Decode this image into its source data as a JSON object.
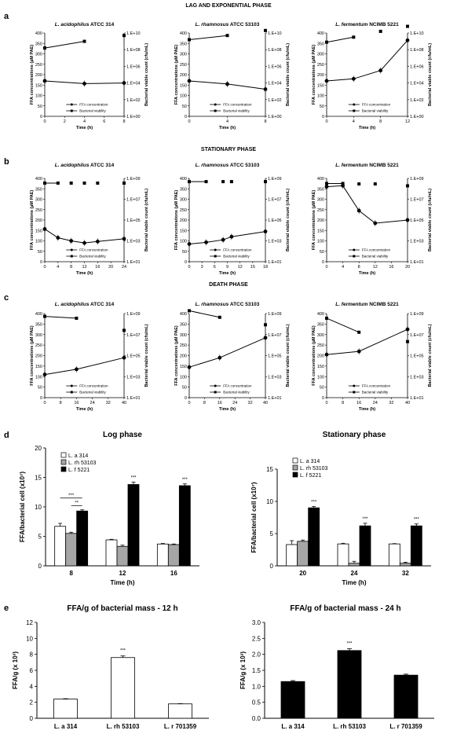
{
  "headers": {
    "lag": "LAG AND EXPONENTIAL PHASE",
    "stationary": "STATIONARY PHASE",
    "death": "DEATH PHASE"
  },
  "panel_letters": {
    "a": "a",
    "b": "b",
    "c": "c",
    "d": "d",
    "e": "e"
  },
  "strain_titles": [
    {
      "species": "L. acidophilus",
      "strain": " ATCC 314"
    },
    {
      "species": "L. rhamnosus",
      "strain": " ATCC 53103"
    },
    {
      "species": "L. fermentum",
      "strain": " NCIMB 5221"
    }
  ],
  "labels": {
    "ffa_axis": "FFA concentrations (µM PAE)",
    "via_axis": "Bacterial viable count (cfu/mL)",
    "time_axis": "Time (h)",
    "legend_ffa": "FFA concentration",
    "legend_via": "Bacterial viability",
    "d_yaxis": "FFA/bacterial cell (x10⁷)",
    "d_xaxis": "Time (h)",
    "e_yaxis_left": "FFA/g (x 10³)",
    "e_yaxis_right": "FFA/g (x 10³)"
  },
  "colors": {
    "white_bar": "#ffffff",
    "grey_bar": "#a6a6a6",
    "black_bar": "#000000",
    "line": "#000000"
  },
  "chart_data": [
    {
      "id": "a1",
      "type": "line",
      "row": "a",
      "col": 0,
      "xlim": [
        0,
        8
      ],
      "xticks": [
        0,
        2,
        4,
        6,
        8
      ],
      "ylim": [
        0,
        400
      ],
      "yticks": [
        0,
        50,
        100,
        150,
        200,
        250,
        300,
        350,
        400
      ],
      "y2ticks": [
        "1.E+00",
        "1.E+02",
        "1.E+04",
        "1.E+06",
        "1.E+08",
        "1.E+10"
      ],
      "y2exp": [
        0,
        10
      ],
      "series": [
        {
          "name": "FFA concentration",
          "x": [
            0,
            4,
            8
          ],
          "y": [
            170,
            157,
            160
          ]
        },
        {
          "name": "Bacterial viability",
          "x": [
            0,
            4,
            8
          ],
          "yexp": [
            8.2,
            9.0,
            9.7
          ]
        }
      ]
    },
    {
      "id": "a2",
      "type": "line",
      "row": "a",
      "col": 1,
      "xlim": [
        0,
        8
      ],
      "xticks": [
        0,
        4,
        8
      ],
      "ylim": [
        0,
        400
      ],
      "yticks": [
        0,
        50,
        100,
        150,
        200,
        250,
        300,
        350,
        400
      ],
      "y2ticks": [
        "1.E+00",
        "1.E+02",
        "1.E+04",
        "1.E+06",
        "1.E+08",
        "1.E+10"
      ],
      "y2exp": [
        0,
        10
      ],
      "series": [
        {
          "name": "FFA concentration",
          "x": [
            0,
            4,
            8
          ],
          "y": [
            170,
            155,
            130
          ]
        },
        {
          "name": "Bacterial viability",
          "x": [
            0,
            4,
            8
          ],
          "yexp": [
            9.2,
            9.7,
            10.3
          ]
        }
      ]
    },
    {
      "id": "a3",
      "type": "line",
      "row": "a",
      "col": 2,
      "xlim": [
        0,
        12
      ],
      "xticks": [
        0,
        4,
        8,
        12
      ],
      "ylim": [
        0,
        400
      ],
      "yticks": [
        0,
        50,
        100,
        150,
        200,
        250,
        300,
        350,
        400
      ],
      "y2ticks": [
        "1.E+00",
        "1.E+02",
        "1.E+04",
        "1.E+06",
        "1.E+08",
        "1.E+10"
      ],
      "y2exp": [
        0,
        10
      ],
      "series": [
        {
          "name": "FFA concentration",
          "x": [
            0,
            4,
            8,
            12
          ],
          "y": [
            170,
            180,
            220,
            365
          ]
        },
        {
          "name": "Bacterial viability",
          "x": [
            0,
            4,
            8,
            12
          ],
          "yexp": [
            8.9,
            9.5,
            10.2,
            10.8
          ]
        }
      ]
    },
    {
      "id": "b1",
      "type": "line",
      "row": "b",
      "col": 0,
      "xlim": [
        0,
        24
      ],
      "xticks": [
        0,
        4,
        8,
        12,
        16,
        20,
        24
      ],
      "ylim": [
        0,
        400
      ],
      "yticks": [
        0,
        50,
        100,
        150,
        200,
        250,
        300,
        350,
        400
      ],
      "y2ticks": [
        "1.E+01",
        "1.E+03",
        "1.E+05",
        "1.E+07",
        "1.E+09"
      ],
      "y2exp": [
        1,
        9.85
      ],
      "series": [
        {
          "name": "FFA concentration",
          "x": [
            0,
            4,
            8,
            12,
            16,
            24
          ],
          "y": [
            157,
            115,
            100,
            90,
            97,
            110
          ]
        },
        {
          "name": "Bacterial viability",
          "x": [
            0,
            4,
            8,
            12,
            16,
            24
          ],
          "yexp": [
            9.35,
            9.35,
            9.35,
            9.35,
            9.35,
            9.35
          ]
        }
      ]
    },
    {
      "id": "b2",
      "type": "line",
      "row": "b",
      "col": 1,
      "xlim": [
        0,
        18
      ],
      "xticks": [
        0,
        3,
        6,
        9,
        12,
        15,
        18
      ],
      "ylim": [
        0,
        400
      ],
      "yticks": [
        0,
        50,
        100,
        150,
        200,
        250,
        300,
        350,
        400
      ],
      "y2ticks": [
        "1.E+01",
        "1.E+03",
        "1.E+05",
        "1.E+07",
        "1.E+09"
      ],
      "y2exp": [
        1,
        10
      ],
      "series": [
        {
          "name": "FFA concentration",
          "x": [
            0,
            4,
            8,
            10,
            18
          ],
          "y": [
            85,
            93,
            105,
            120,
            145
          ]
        },
        {
          "name": "Bacterial viability",
          "x": [
            0,
            4,
            8,
            10,
            18
          ],
          "yexp": [
            9.65,
            9.65,
            9.65,
            9.65,
            9.65
          ]
        }
      ]
    },
    {
      "id": "b3",
      "type": "line",
      "row": "b",
      "col": 2,
      "xlim": [
        0,
        20
      ],
      "xticks": [
        0,
        4,
        8,
        12,
        16,
        20
      ],
      "ylim": [
        0,
        400
      ],
      "yticks": [
        0,
        50,
        100,
        150,
        200,
        250,
        300,
        350,
        400
      ],
      "y2ticks": [
        "1.E+01",
        "1.E+03",
        "1.E+05",
        "1.E+07",
        "1.E+09"
      ],
      "y2exp": [
        1,
        10
      ],
      "series": [
        {
          "name": "FFA concentration",
          "x": [
            0,
            4,
            8,
            12,
            20
          ],
          "y": [
            360,
            365,
            245,
            185,
            200
          ]
        },
        {
          "name": "Bacterial viability",
          "x": [
            0,
            4,
            8,
            12,
            20
          ],
          "yexp": [
            9.45,
            9.45,
            9.4,
            9.4,
            9.2
          ]
        }
      ]
    },
    {
      "id": "c1",
      "type": "line",
      "row": "c",
      "col": 0,
      "xlim": [
        0,
        40
      ],
      "xticks": [
        0,
        8,
        16,
        24,
        32,
        40
      ],
      "ylim": [
        0,
        400
      ],
      "yticks": [
        0,
        50,
        100,
        150,
        200,
        250,
        300,
        350,
        400
      ],
      "y2ticks": [
        "1.E+01",
        "1.E+03",
        "1.E+05",
        "1.E+07",
        "1.E+09"
      ],
      "y2exp": [
        1,
        10
      ],
      "series": [
        {
          "name": "FFA concentration",
          "x": [
            0,
            16,
            40
          ],
          "y": [
            110,
            135,
            190
          ]
        },
        {
          "name": "Bacterial viability",
          "x": [
            0,
            16,
            40
          ],
          "yexp": [
            9.7,
            9.5,
            8.2
          ]
        }
      ]
    },
    {
      "id": "c2",
      "type": "line",
      "row": "c",
      "col": 1,
      "xlim": [
        0,
        40
      ],
      "xticks": [
        0,
        8,
        16,
        24,
        32,
        40
      ],
      "ylim": [
        0,
        400
      ],
      "yticks": [
        0,
        50,
        100,
        150,
        200,
        250,
        300,
        350,
        400
      ],
      "y2ticks": [
        "1.E+01",
        "1.E+03",
        "1.E+05",
        "1.E+07",
        "1.E+09"
      ],
      "y2exp": [
        1,
        10
      ],
      "series": [
        {
          "name": "FFA concentration",
          "x": [
            0,
            16,
            40
          ],
          "y": [
            145,
            190,
            285
          ]
        },
        {
          "name": "Bacterial viability",
          "x": [
            0,
            16,
            40
          ],
          "yexp": [
            10.3,
            9.6,
            8.8
          ]
        }
      ]
    },
    {
      "id": "c3",
      "type": "line",
      "row": "c",
      "col": 2,
      "xlim": [
        0,
        40
      ],
      "xticks": [
        0,
        8,
        16,
        24,
        32,
        40
      ],
      "ylim": [
        0,
        400
      ],
      "yticks": [
        0,
        50,
        100,
        150,
        200,
        250,
        300,
        350,
        400
      ],
      "y2ticks": [
        "1.E+01",
        "1.E+03",
        "1.E+05",
        "1.E+07",
        "1.E+09"
      ],
      "y2exp": [
        1,
        10
      ],
      "series": [
        {
          "name": "FFA concentration",
          "x": [
            0,
            16,
            40
          ],
          "y": [
            205,
            220,
            325
          ]
        },
        {
          "name": "Bacterial viability",
          "x": [
            0,
            16,
            40
          ],
          "yexp": [
            9.5,
            8.0,
            7.0
          ]
        }
      ]
    },
    {
      "id": "d1",
      "type": "bar",
      "title": "Log phase",
      "categories": [
        "8",
        "12",
        "16"
      ],
      "ylim": [
        0,
        20
      ],
      "yticks": [
        0,
        5,
        10,
        15,
        20
      ],
      "series": [
        {
          "name": "L. a 314",
          "values": [
            6.7,
            4.4,
            3.7
          ],
          "err": [
            0.5,
            0.1,
            0.1
          ]
        },
        {
          "name": "L. rh 53103",
          "values": [
            5.5,
            3.3,
            3.6
          ],
          "err": [
            0.2,
            0.2,
            0.1
          ]
        },
        {
          "name": "L. f 5221",
          "values": [
            9.3,
            13.8,
            13.6
          ],
          "err": [
            0.2,
            0.4,
            0.3
          ]
        }
      ],
      "sig": [
        {
          "cat": 1,
          "text": "***"
        },
        {
          "cat": 2,
          "text": "***"
        }
      ],
      "brackets": [
        {
          "text": "***"
        },
        {
          "text": "**"
        }
      ]
    },
    {
      "id": "d2",
      "type": "bar",
      "title": "Stationary phase",
      "categories": [
        "20",
        "24",
        "32"
      ],
      "ylim": [
        0,
        15
      ],
      "yticks": [
        0,
        5,
        10,
        15
      ],
      "series": [
        {
          "name": "L. a 314",
          "values": [
            3.3,
            3.4,
            3.4
          ],
          "err": [
            0.6,
            0.1,
            0.05
          ]
        },
        {
          "name": "L. rh 53103",
          "values": [
            3.8,
            0.4,
            0.4
          ],
          "err": [
            0.2,
            0.3,
            0.15
          ]
        },
        {
          "name": "L. f 5221",
          "values": [
            9.0,
            6.2,
            6.2
          ],
          "err": [
            0.2,
            0.4,
            0.3
          ]
        }
      ],
      "sig": [
        {
          "cat": 0,
          "text": "***"
        },
        {
          "cat": 1,
          "text": "***"
        },
        {
          "cat": 2,
          "text": "***"
        }
      ]
    },
    {
      "id": "e1",
      "type": "bar",
      "title": "FFA/g of bacterial mass - 12 h",
      "categories": [
        "L. a 314",
        "L. rh 53103",
        "L. r 701359"
      ],
      "ylim": [
        0,
        12
      ],
      "yticks": [
        0,
        2,
        4,
        6,
        8,
        10,
        12
      ],
      "fill": "white",
      "values": [
        2.4,
        7.6,
        1.8
      ],
      "err": [
        0.05,
        0.2,
        0.03
      ],
      "sig": [
        {
          "cat": 1,
          "text": "***"
        }
      ]
    },
    {
      "id": "e2",
      "type": "bar",
      "title": "FFA/g of bacterial mass - 24 h",
      "categories": [
        "L. a 314",
        "L. rh 53103",
        "L. r 701359"
      ],
      "ylim": [
        0,
        3
      ],
      "yticks": [
        "0.0",
        "0.5",
        "1.0",
        "1.5",
        "2.0",
        "2.5",
        "3.0"
      ],
      "fill": "black",
      "values": [
        1.15,
        2.12,
        1.35
      ],
      "err": [
        0.03,
        0.06,
        0.03
      ],
      "sig": [
        {
          "cat": 1,
          "text": "***"
        }
      ]
    }
  ]
}
